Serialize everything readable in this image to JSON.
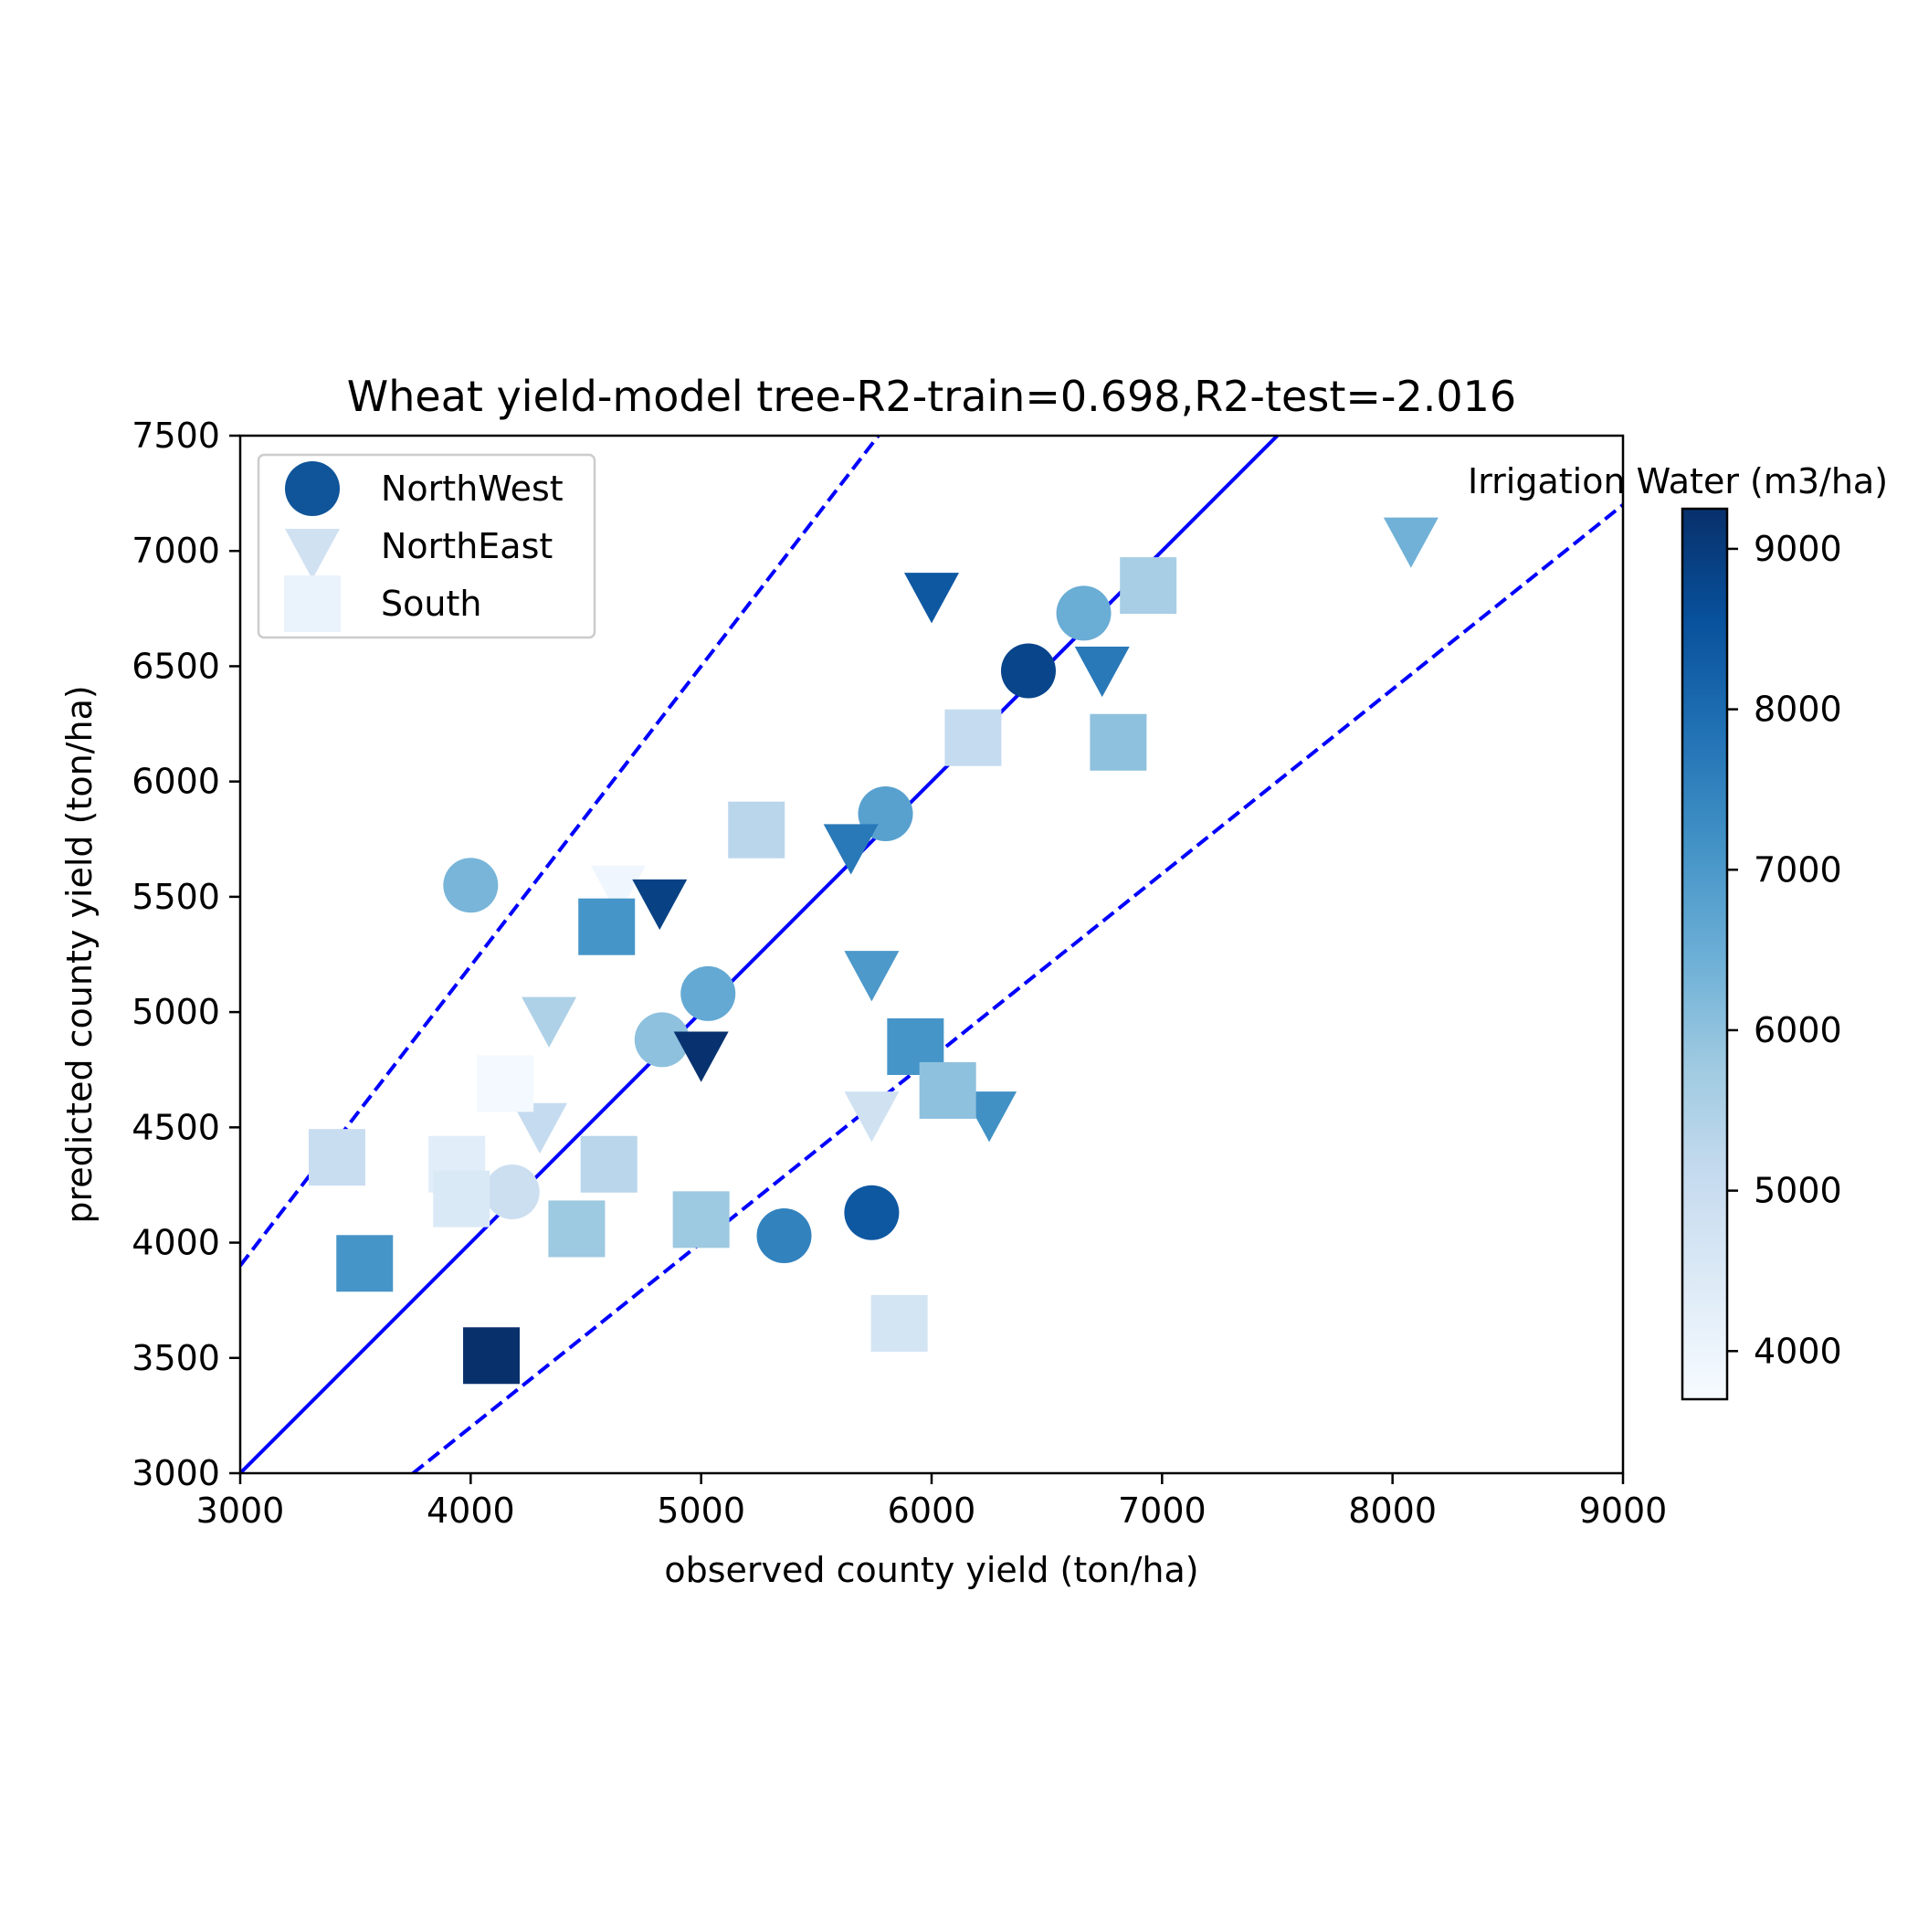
{
  "chart_data": {
    "type": "scatter",
    "title": "Wheat yield-model tree-R2-train=0.698,R2-test=-2.016",
    "xlabel": "observed county yield (ton/ha)",
    "ylabel": "predicted county yield (ton/ha)",
    "xlim": [
      3000,
      9000
    ],
    "ylim": [
      3000,
      7500
    ],
    "xticks": [
      3000,
      4000,
      5000,
      6000,
      7000,
      8000,
      9000
    ],
    "yticks": [
      3000,
      3500,
      4000,
      4500,
      5000,
      5500,
      6000,
      6500,
      7000,
      7500
    ],
    "grid": false,
    "legend": {
      "placement": "upper-left",
      "entries": [
        {
          "label": "NorthWest",
          "marker": "circle",
          "color": "#10559a"
        },
        {
          "label": "NorthEast",
          "marker": "triangle-down",
          "color": "#d0e1f2"
        },
        {
          "label": "South",
          "marker": "square",
          "color": "#eaf2fb"
        }
      ]
    },
    "colorbar": {
      "label": "Irrigation Water (m3/ha)",
      "colormap": "Blues",
      "range": [
        3700,
        9250
      ],
      "ticks": [
        4000,
        5000,
        6000,
        7000,
        8000,
        9000
      ]
    },
    "reference_lines": [
      {
        "style": "solid",
        "color": "#0000ff",
        "description": "y = x"
      },
      {
        "style": "dashed",
        "color": "#0000ff",
        "description": "y = 1.3x"
      },
      {
        "style": "dashed",
        "color": "#0000ff",
        "description": "y = 0.8x"
      }
    ],
    "series": [
      {
        "name": "NorthWest",
        "marker": "circle",
        "points": [
          {
            "x": 4000,
            "y": 5550,
            "c": 6300
          },
          {
            "x": 4180,
            "y": 4220,
            "c": 4900
          },
          {
            "x": 4830,
            "y": 4880,
            "c": 6000
          },
          {
            "x": 5030,
            "y": 5080,
            "c": 6600
          },
          {
            "x": 5360,
            "y": 4030,
            "c": 7500
          },
          {
            "x": 5740,
            "y": 4130,
            "c": 8400
          },
          {
            "x": 5800,
            "y": 5860,
            "c": 6800
          },
          {
            "x": 6420,
            "y": 6480,
            "c": 8800
          },
          {
            "x": 6660,
            "y": 6730,
            "c": 6500
          }
        ]
      },
      {
        "name": "NorthEast",
        "marker": "triangle-down",
        "points": [
          {
            "x": 4340,
            "y": 4990,
            "c": 5500
          },
          {
            "x": 4300,
            "y": 4530,
            "c": 5100
          },
          {
            "x": 4640,
            "y": 5560,
            "c": 3900
          },
          {
            "x": 4820,
            "y": 5500,
            "c": 8900
          },
          {
            "x": 5000,
            "y": 4840,
            "c": 9200
          },
          {
            "x": 5650,
            "y": 5740,
            "c": 7700
          },
          {
            "x": 5740,
            "y": 5190,
            "c": 7000
          },
          {
            "x": 5740,
            "y": 4580,
            "c": 4800
          },
          {
            "x": 6000,
            "y": 6830,
            "c": 8400
          },
          {
            "x": 6250,
            "y": 4580,
            "c": 7200
          },
          {
            "x": 6740,
            "y": 6510,
            "c": 7700
          },
          {
            "x": 8080,
            "y": 7070,
            "c": 6400
          }
        ]
      },
      {
        "name": "South",
        "marker": "square",
        "points": [
          {
            "x": 3420,
            "y": 4370,
            "c": 5000
          },
          {
            "x": 3540,
            "y": 3910,
            "c": 7100
          },
          {
            "x": 3940,
            "y": 4340,
            "c": 4300
          },
          {
            "x": 3960,
            "y": 4190,
            "c": 4500
          },
          {
            "x": 4090,
            "y": 3510,
            "c": 9250
          },
          {
            "x": 4150,
            "y": 4690,
            "c": 3800
          },
          {
            "x": 4460,
            "y": 4060,
            "c": 5800
          },
          {
            "x": 4590,
            "y": 5370,
            "c": 7100
          },
          {
            "x": 4600,
            "y": 4340,
            "c": 5300
          },
          {
            "x": 5000,
            "y": 4100,
            "c": 5800
          },
          {
            "x": 5240,
            "y": 5790,
            "c": 5300
          },
          {
            "x": 5860,
            "y": 3650,
            "c": 4700
          },
          {
            "x": 5930,
            "y": 4850,
            "c": 7100
          },
          {
            "x": 6070,
            "y": 4660,
            "c": 6000
          },
          {
            "x": 6180,
            "y": 6190,
            "c": 5100
          },
          {
            "x": 6810,
            "y": 6170,
            "c": 6000
          },
          {
            "x": 6940,
            "y": 6850,
            "c": 5600
          }
        ]
      }
    ]
  }
}
